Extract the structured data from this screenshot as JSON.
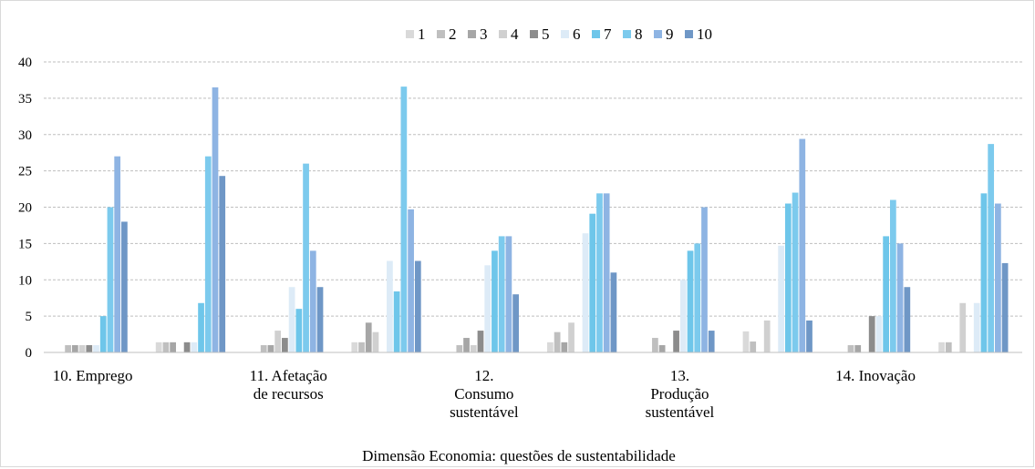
{
  "chart_data": {
    "type": "bar",
    "title": "",
    "xlabel": "Dimensão Economia: questões de sustentabilidade",
    "ylabel": "",
    "ylim": [
      0,
      40
    ],
    "yticks": [
      0,
      5,
      10,
      15,
      20,
      25,
      30,
      35,
      40
    ],
    "grid": true,
    "legend_position": "top",
    "categories": [
      [
        "10. Emprego"
      ],
      [],
      [
        "11. Afetação",
        "de recursos"
      ],
      [],
      [
        "12.",
        "Consumo",
        "sustentável"
      ],
      [],
      [
        "13.",
        "Produção",
        "sustentável"
      ],
      [],
      [
        "14. Inovação"
      ],
      []
    ],
    "series": [
      {
        "name": "1",
        "color": "#d9d9d9",
        "values": [
          0,
          1.4,
          0,
          1.4,
          0,
          1.4,
          0,
          2.9,
          0,
          1.4
        ]
      },
      {
        "name": "2",
        "color": "#bfbfbf",
        "values": [
          1,
          1.4,
          1,
          1.4,
          1,
          2.8,
          2,
          1.5,
          1,
          1.4
        ]
      },
      {
        "name": "3",
        "color": "#a6a6a6",
        "values": [
          1,
          1.4,
          1,
          4.1,
          2,
          1.4,
          1,
          0,
          1,
          0
        ]
      },
      {
        "name": "4",
        "color": "#d0d0d0",
        "values": [
          1,
          0,
          3,
          2.8,
          1,
          4.1,
          0,
          4.4,
          0,
          6.8
        ]
      },
      {
        "name": "5",
        "color": "#8c8c8c",
        "values": [
          1,
          1.4,
          2,
          0,
          3,
          0,
          3,
          0,
          5,
          0
        ]
      },
      {
        "name": "6",
        "color": "#ddebf7",
        "values": [
          1,
          1.4,
          9,
          12.6,
          12,
          16.4,
          10,
          14.7,
          5,
          6.8
        ]
      },
      {
        "name": "7",
        "color": "#6ec6ea",
        "values": [
          5,
          6.8,
          6,
          8.4,
          14,
          19.1,
          14,
          20.5,
          16,
          21.9
        ]
      },
      {
        "name": "8",
        "color": "#7ccaed",
        "values": [
          20,
          27,
          26,
          36.6,
          16,
          21.9,
          15,
          22,
          21,
          28.7
        ]
      },
      {
        "name": "9",
        "color": "#8eb4e3",
        "values": [
          27,
          36.5,
          14,
          19.7,
          16,
          21.9,
          20,
          29.4,
          15,
          20.5
        ]
      },
      {
        "name": "10",
        "color": "#6f97c6",
        "values": [
          18,
          24.3,
          9,
          12.6,
          8,
          11,
          3,
          4.4,
          9,
          12.3
        ]
      }
    ]
  }
}
